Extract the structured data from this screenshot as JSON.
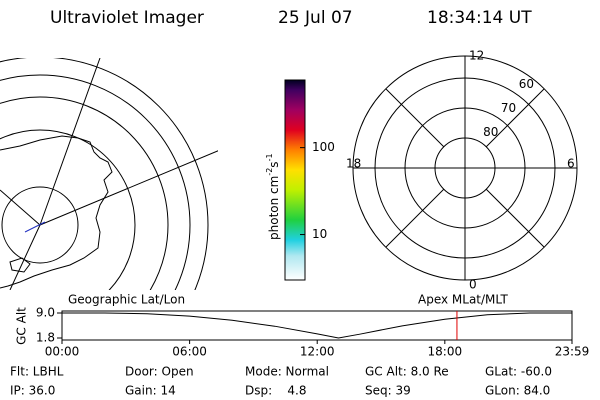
{
  "header": {
    "title": "Ultraviolet Imager",
    "date": "25 Jul 07",
    "time": "18:34:14 UT"
  },
  "colorbar": {
    "unit": [
      "photon cm",
      "-2",
      "s",
      "-1"
    ],
    "lim": [
      3,
      600
    ],
    "ticks": [
      10,
      100
    ],
    "log": true
  },
  "polar": {
    "circles": [
      80,
      70,
      60
    ],
    "mlt": [
      "12",
      "6",
      "0",
      "18"
    ]
  },
  "timeline": {
    "left_label": "Geographic Lat/Lon",
    "right_label": "Apex MLat/MLT",
    "ylabel": "GC Alt",
    "x": [
      0,
      2,
      4,
      6,
      8,
      10,
      12,
      13,
      14,
      16,
      18,
      20,
      22,
      23.98
    ],
    "values": [
      9.0,
      9.0,
      8.8,
      8.1,
      6.9,
      5.2,
      3.0,
      1.8,
      2.9,
      5.3,
      7.2,
      8.5,
      9.0,
      9.0
    ],
    "xlim": [
      0,
      23.98
    ],
    "ylim": [
      1.8,
      9.0
    ],
    "yticks": [
      {
        "value": 9,
        "label": "9.0"
      },
      {
        "value": 1.8,
        "label": "1.8"
      }
    ],
    "xticks": [
      {
        "value": 0,
        "label": "00:00"
      },
      {
        "value": 6,
        "label": "06:00"
      },
      {
        "value": 12,
        "label": "12:00"
      },
      {
        "value": 18,
        "label": "18:00"
      },
      {
        "value": 23.98,
        "label": "23:59"
      }
    ],
    "marker": 18.57,
    "marker_color": "#e00000"
  },
  "footer": [
    [
      "Flt: LBHL",
      "Door: Open",
      "Mode: Normal",
      "GC Alt: 8.0 Re",
      "GLat: -60.0"
    ],
    [
      "IP: 36.0",
      "Gain: 14",
      "Dsp:    4.8",
      "Seq: 39",
      "GLon: 84.0"
    ]
  ]
}
